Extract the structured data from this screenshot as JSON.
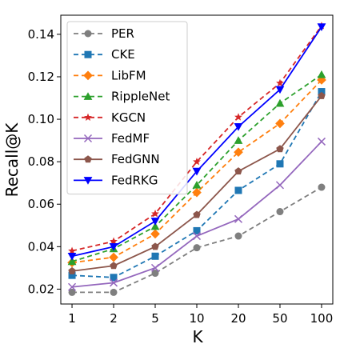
{
  "chart_data": {
    "type": "line",
    "xlabel": "K",
    "ylabel": "Recall@K",
    "categories": [
      "1",
      "2",
      "5",
      "10",
      "20",
      "50",
      "100"
    ],
    "ylim": [
      0.013,
      0.149
    ],
    "yticks": [
      "0.02",
      "0.04",
      "0.06",
      "0.08",
      "0.10",
      "0.12",
      "0.14"
    ],
    "grid": false,
    "legend_position": "top-left",
    "series": [
      {
        "name": "PER",
        "color": "#7f7f7f",
        "dash": "dashed",
        "marker": "circle",
        "values": [
          0.0185,
          0.0185,
          0.0275,
          0.0395,
          0.045,
          0.0565,
          0.068
        ]
      },
      {
        "name": "CKE",
        "color": "#1f77b4",
        "dash": "dashed",
        "marker": "square",
        "values": [
          0.0265,
          0.0255,
          0.0355,
          0.0475,
          0.0665,
          0.079,
          0.113
        ]
      },
      {
        "name": "LibFM",
        "color": "#ff7f0e",
        "dash": "dashed",
        "marker": "diamond",
        "values": [
          0.0325,
          0.035,
          0.046,
          0.0655,
          0.0845,
          0.098,
          0.1185
        ]
      },
      {
        "name": "RippleNet",
        "color": "#2ca02c",
        "dash": "dashed",
        "marker": "triangle-up",
        "values": [
          0.033,
          0.039,
          0.0495,
          0.069,
          0.09,
          0.1075,
          0.121
        ]
      },
      {
        "name": "KGCN",
        "color": "#d62728",
        "dash": "dashed",
        "marker": "star",
        "values": [
          0.038,
          0.0425,
          0.0555,
          0.08,
          0.101,
          0.117,
          0.144
        ]
      },
      {
        "name": "FedMF",
        "color": "#9467bd",
        "dash": "solid",
        "marker": "x",
        "values": [
          0.021,
          0.023,
          0.03,
          0.045,
          0.053,
          0.069,
          0.0895
        ]
      },
      {
        "name": "FedGNN",
        "color": "#8c564b",
        "dash": "solid",
        "marker": "pentagon",
        "values": [
          0.0285,
          0.031,
          0.04,
          0.055,
          0.0755,
          0.086,
          0.111
        ]
      },
      {
        "name": "FedRKG",
        "color": "#0000ff",
        "dash": "solid",
        "marker": "triangle-down",
        "values": [
          0.0355,
          0.04,
          0.052,
          0.0755,
          0.0965,
          0.114,
          0.1435
        ]
      }
    ]
  }
}
